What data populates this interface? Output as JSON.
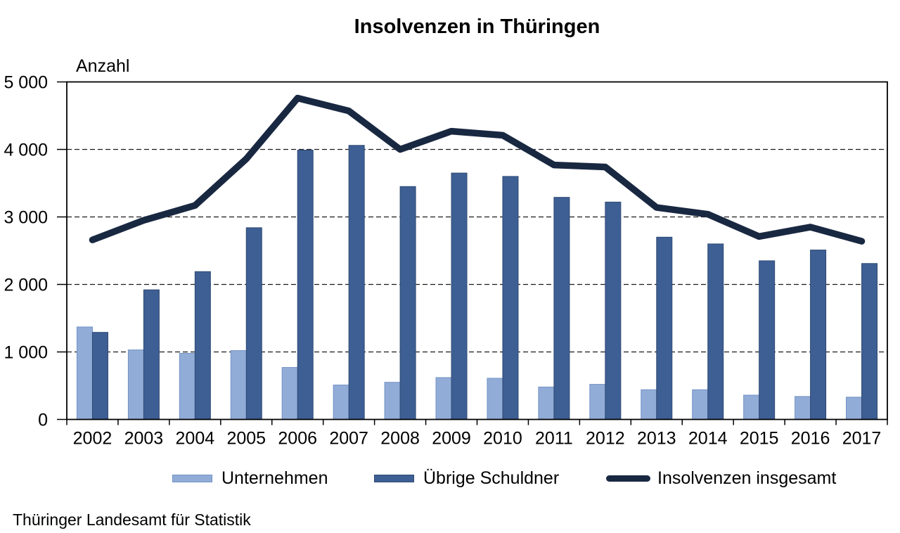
{
  "source": "Thüringer Landesamt für Statistik",
  "colors": {
    "background": "#ffffff",
    "unternehmen_fill": "#92acd8",
    "unternehmen_border": "#7191c3",
    "uebrige_fill": "#3e5f94",
    "uebrige_border": "#2e4a74",
    "insgesamt_line": "#192841",
    "axis": "#000000",
    "grid": "#1a1a1a"
  },
  "chart_data": {
    "type": "bar",
    "subtype": "grouped bars with overlay line",
    "title": "Insolvenzen in Thüringen",
    "ylabel": "Anzahl",
    "xlabel": "",
    "categories": [
      "2002",
      "2003",
      "2004",
      "2005",
      "2006",
      "2007",
      "2008",
      "2009",
      "2010",
      "2011",
      "2012",
      "2013",
      "2014",
      "2015",
      "2016",
      "2017"
    ],
    "series": [
      {
        "name": "Unternehmen",
        "type": "bar",
        "color": "#92acd8",
        "values": [
          1370,
          1030,
          980,
          1020,
          770,
          510,
          550,
          620,
          610,
          480,
          520,
          440,
          440,
          360,
          340,
          330
        ]
      },
      {
        "name": "Übrige Schuldner",
        "type": "bar",
        "color": "#3e5f94",
        "values": [
          1290,
          1920,
          2190,
          2840,
          3990,
          4060,
          3450,
          3650,
          3600,
          3290,
          3220,
          2700,
          2600,
          2350,
          2510,
          2310
        ]
      },
      {
        "name": "Insolvenzen insgesamt",
        "type": "line",
        "color": "#192841",
        "values": [
          2660,
          2950,
          3170,
          3860,
          4760,
          4570,
          4000,
          4270,
          4210,
          3770,
          3740,
          3140,
          3040,
          2710,
          2850,
          2640
        ]
      }
    ],
    "ylim": [
      0,
      5000
    ],
    "ytick_step": 1000,
    "ytick_labels": [
      "0",
      "1 000",
      "2 000",
      "3 000",
      "4 000",
      "5 000"
    ],
    "grid": "horizontal dashed",
    "legend_position": "bottom"
  }
}
